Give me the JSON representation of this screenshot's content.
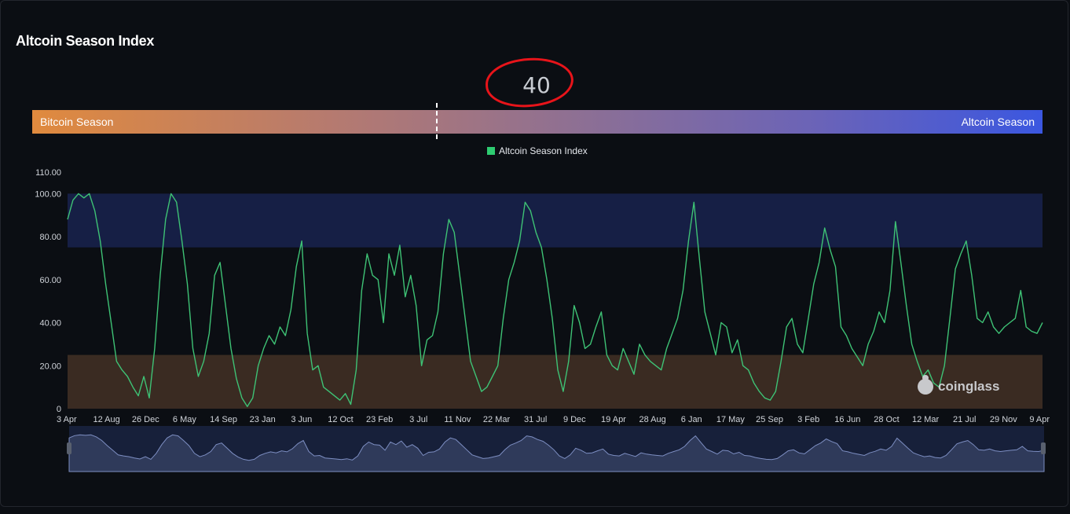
{
  "header": {
    "title": "Altcoin Season Index"
  },
  "current_value": {
    "value": "40",
    "number": 40
  },
  "gauge": {
    "left_label": "Bitcoin Season",
    "right_label": "Altcoin Season"
  },
  "watermark": {
    "text": "coinglass"
  },
  "colors": {
    "line": "#3ec275",
    "altseason_band": "#161f45",
    "btcseason_band": "#3a2b22",
    "navigator": "#2f3a5a",
    "annotation_circle": "#e8141a"
  },
  "chart_data": {
    "type": "line",
    "legend": "Altcoin Season Index",
    "legend_placement": "top-center",
    "ylim": [
      0,
      110
    ],
    "y_ticks": [
      "0",
      "20.00",
      "40.00",
      "60.00",
      "80.00",
      "100.00",
      "110.00"
    ],
    "y_tick_values": [
      0,
      20,
      40,
      60,
      80,
      100,
      110
    ],
    "x_ticks": [
      "3 Apr",
      "12 Aug",
      "26 Dec",
      "6 May",
      "14 Sep",
      "23 Jan",
      "3 Jun",
      "12 Oct",
      "23 Feb",
      "3 Jul",
      "11 Nov",
      "22 Mar",
      "31 Jul",
      "9 Dec",
      "19 Apr",
      "28 Aug",
      "6 Jan",
      "17 May",
      "25 Sep",
      "3 Feb",
      "16 Jun",
      "28 Oct",
      "12 Mar",
      "21 Jul",
      "29 Nov",
      "9 Apr"
    ],
    "bands": [
      {
        "name": "altcoin-season-zone",
        "from": 75,
        "to": 100
      },
      {
        "name": "bitcoin-season-zone",
        "from": 0,
        "to": 25
      }
    ],
    "grid": false,
    "series": [
      {
        "name": "Altcoin Season Index",
        "values": [
          88,
          97,
          100,
          98,
          100,
          92,
          78,
          58,
          40,
          22,
          18,
          15,
          10,
          6,
          15,
          5,
          28,
          62,
          88,
          100,
          96,
          78,
          58,
          28,
          15,
          22,
          35,
          62,
          68,
          48,
          28,
          14,
          5,
          1,
          5,
          20,
          28,
          34,
          30,
          38,
          34,
          46,
          66,
          78,
          35,
          18,
          20,
          10,
          8,
          6,
          4,
          7,
          2,
          18,
          55,
          72,
          62,
          60,
          40,
          72,
          62,
          76,
          52,
          62,
          48,
          20,
          32,
          34,
          45,
          72,
          88,
          82,
          62,
          42,
          22,
          15,
          8,
          10,
          15,
          20,
          42,
          60,
          68,
          78,
          96,
          92,
          82,
          75,
          60,
          42,
          18,
          8,
          22,
          48,
          40,
          28,
          30,
          38,
          45,
          25,
          20,
          18,
          28,
          22,
          16,
          30,
          25,
          22,
          20,
          18,
          28,
          35,
          42,
          55,
          78,
          96,
          70,
          45,
          35,
          25,
          40,
          38,
          26,
          32,
          20,
          18,
          12,
          8,
          5,
          4,
          8,
          22,
          38,
          42,
          30,
          26,
          42,
          58,
          68,
          84,
          74,
          66,
          38,
          34,
          28,
          24,
          20,
          30,
          36,
          45,
          40,
          55,
          87,
          68,
          48,
          30,
          22,
          15,
          18,
          12,
          10,
          20,
          42,
          65,
          72,
          78,
          62,
          42,
          40,
          45,
          38,
          35,
          38,
          40,
          42,
          55,
          38,
          36,
          35,
          40
        ]
      }
    ]
  }
}
